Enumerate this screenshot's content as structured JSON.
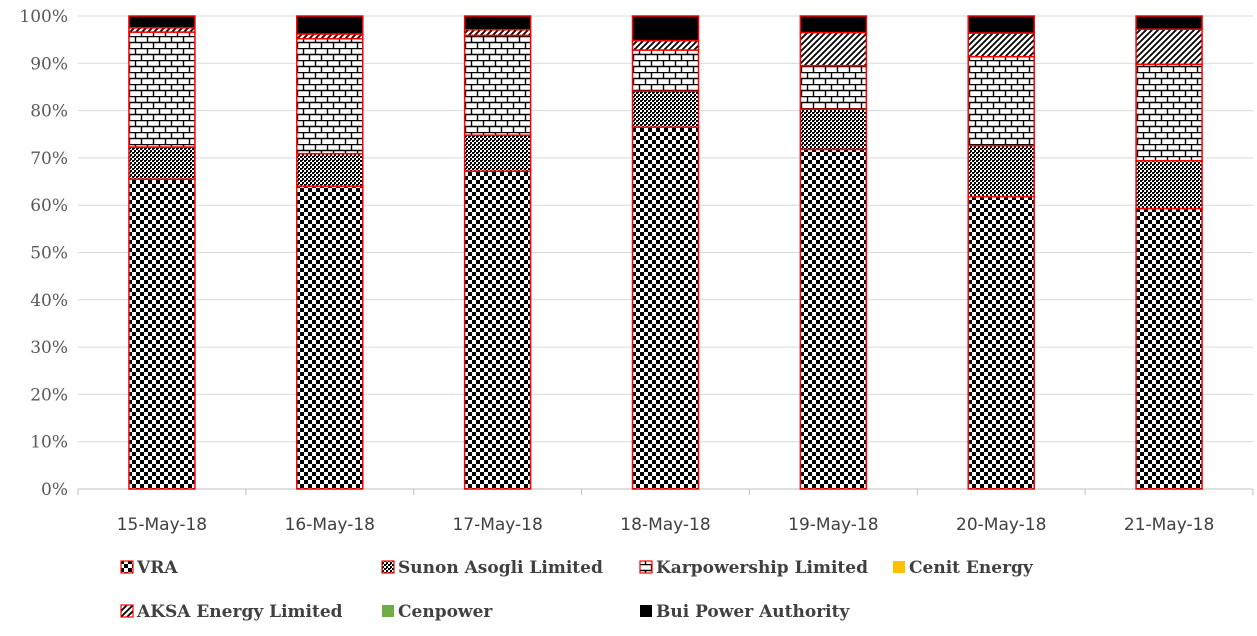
{
  "chart_data": {
    "type": "bar",
    "stacked": "percent",
    "categories": [
      "15-May-18",
      "16-May-18",
      "17-May-18",
      "18-May-18",
      "19-May-18",
      "20-May-18",
      "21-May-18"
    ],
    "ylim": [
      0,
      100
    ],
    "yticks": [
      "0%",
      "10%",
      "20%",
      "30%",
      "40%",
      "50%",
      "60%",
      "70%",
      "80%",
      "90%",
      "100%"
    ],
    "grid": true,
    "legend_position": "bottom",
    "series": [
      {
        "name": "VRA",
        "pattern": "checker",
        "color": "#000000",
        "values": [
          65.5,
          64,
          67.2,
          76.5,
          71.8,
          61.8,
          59.3
        ]
      },
      {
        "name": "Sunon Asogli Limited",
        "pattern": "dense-grid",
        "color": "#000000",
        "values": [
          6.8,
          6.9,
          7.6,
          7.6,
          8.5,
          10.8,
          10.1
        ]
      },
      {
        "name": "Karpowership Limited",
        "pattern": "brick",
        "color": "#000000",
        "values": [
          24.3,
          24.3,
          21.1,
          8.7,
          9.2,
          18.8,
          20.4
        ]
      },
      {
        "name": "Cenit Energy",
        "pattern": "solid",
        "color": "#FFC000",
        "values": [
          0,
          0,
          0,
          0,
          0,
          0,
          0
        ]
      },
      {
        "name": "AKSA Energy Limited",
        "pattern": "diagonal",
        "color": "#000000",
        "values": [
          0.9,
          1.0,
          1.2,
          2.0,
          7.0,
          5.0,
          7.4
        ]
      },
      {
        "name": "Cenpower",
        "pattern": "solid",
        "color": "#70AD47",
        "values": [
          0,
          0,
          0,
          0,
          0,
          0,
          0
        ]
      },
      {
        "name": "Bui Power Authority",
        "pattern": "solid",
        "color": "#000000",
        "values": [
          2.5,
          3.8,
          2.9,
          5.2,
          3.5,
          3.6,
          2.8
        ]
      }
    ],
    "bar_outline_color": "#FF0000"
  }
}
